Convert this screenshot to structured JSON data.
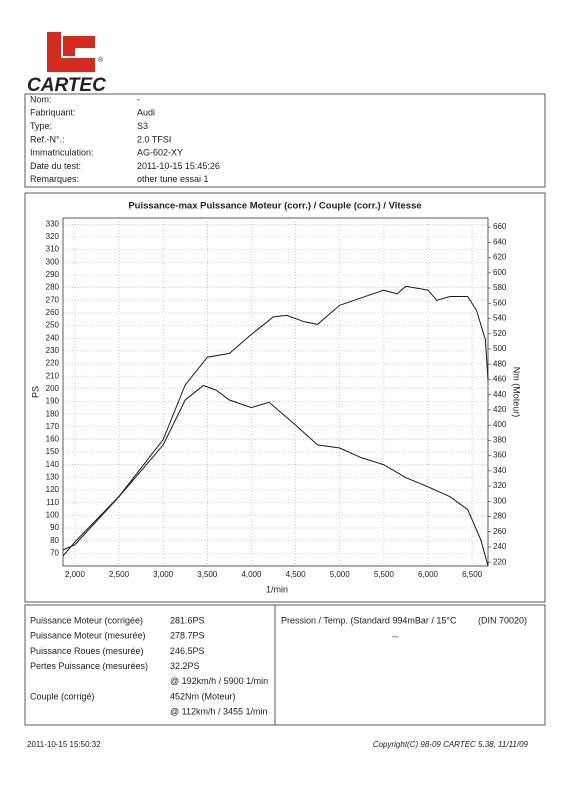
{
  "header": {
    "brand": "CARTEC",
    "registered": "®"
  },
  "info": {
    "rows": [
      [
        "Nom:",
        "-"
      ],
      [
        "Fabriquant:",
        "Audi"
      ],
      [
        "Type:",
        "S3"
      ],
      [
        "Ref.-N°.:",
        "2.0 TFSI"
      ],
      [
        "Immatriculation:",
        "AG-602-XY"
      ],
      [
        "Date du test:",
        "2011-10-15 15:45:26"
      ],
      [
        "Remarques:",
        "other tune essai 1"
      ]
    ]
  },
  "chart_data": {
    "type": "line",
    "title": "Puissance-max Puissance Moteur (corr.) / Couple (corr.) / Vitesse",
    "x_label": "1/min",
    "y_label": "PS",
    "y2_label": "Nm (Moteur)",
    "xlim": [
      1865,
      6680
    ],
    "ylim": [
      60,
      335
    ],
    "y2lim": [
      215,
      672
    ],
    "xticks": [
      {
        "value": 2000,
        "label": "2,000"
      },
      {
        "value": 2500,
        "label": "2,500"
      },
      {
        "value": 3000,
        "label": "3,000"
      },
      {
        "value": 3500,
        "label": "3,500"
      },
      {
        "value": 4000,
        "label": "4,000"
      },
      {
        "value": 4500,
        "label": "4,500"
      },
      {
        "value": 5000,
        "label": "5,000"
      },
      {
        "value": 5500,
        "label": "5,500"
      },
      {
        "value": 6000,
        "label": "6,000"
      },
      {
        "value": 6500,
        "label": "6,500"
      }
    ],
    "yticks": [
      70,
      80,
      90,
      100,
      110,
      120,
      130,
      140,
      150,
      160,
      170,
      180,
      190,
      200,
      210,
      220,
      230,
      240,
      250,
      260,
      270,
      280,
      290,
      300,
      310,
      320,
      330
    ],
    "y2ticks": [
      220,
      240,
      260,
      280,
      300,
      320,
      340,
      360,
      380,
      400,
      420,
      440,
      460,
      480,
      500,
      520,
      540,
      560,
      580,
      600,
      620,
      640,
      660
    ],
    "grid": true,
    "series": [
      {
        "color": "#1a1a1a",
        "x": [
          1865,
          2000,
          2500,
          3000,
          3250,
          3500,
          3750,
          4000,
          4250,
          4400,
          4600,
          4750,
          5000,
          5250,
          5500,
          5650,
          5750,
          6000,
          6100,
          6250,
          6450,
          6550,
          6650,
          6680
        ],
        "values": [
          68,
          79,
          115,
          160,
          203,
          225,
          228,
          243,
          257,
          258,
          253,
          251,
          266,
          272,
          278,
          275,
          281,
          278,
          270,
          273,
          273,
          262,
          239,
          207
        ]
      },
      {
        "color": "#1a1a1a",
        "axis": "y2",
        "x": [
          1865,
          2000,
          2500,
          3000,
          3250,
          3455,
          3600,
          3750,
          4000,
          4200,
          4500,
          4750,
          5000,
          5250,
          5500,
          5750,
          6000,
          6250,
          6450,
          6600,
          6680
        ],
        "values": [
          236,
          243,
          306,
          374,
          433,
          452,
          446,
          433,
          423,
          430,
          400,
          374,
          370,
          357,
          348,
          331,
          319,
          306,
          289,
          249,
          215
        ]
      }
    ]
  },
  "results": {
    "rows": [
      [
        "Puissance Moteur (corrigée)",
        "281.6PS"
      ],
      [
        "Puissance Moteur (mesurée)",
        "278.7PS"
      ],
      [
        "Puissance Roues (mesurée)",
        "246.5PS"
      ],
      [
        "Pertes Puissance (mesurées)",
        "32.2PS"
      ],
      [
        "",
        "@ 192km/h / 5900 1/min"
      ],
      [
        "Couple (corrigé)",
        "452Nm (Moteur)"
      ],
      [
        "",
        "@ 112km/h / 3455 1/min"
      ]
    ],
    "conditions": "Pression / Temp. (Standard 994mBar / 15°C",
    "norm": "(DIN 70020)",
    "conditions_value": "--"
  },
  "footer": {
    "printed": "2011-10-15 15:50:32",
    "copyright": "Copyright(C) 98-09 CARTEC 5.38, 11/11/09"
  }
}
